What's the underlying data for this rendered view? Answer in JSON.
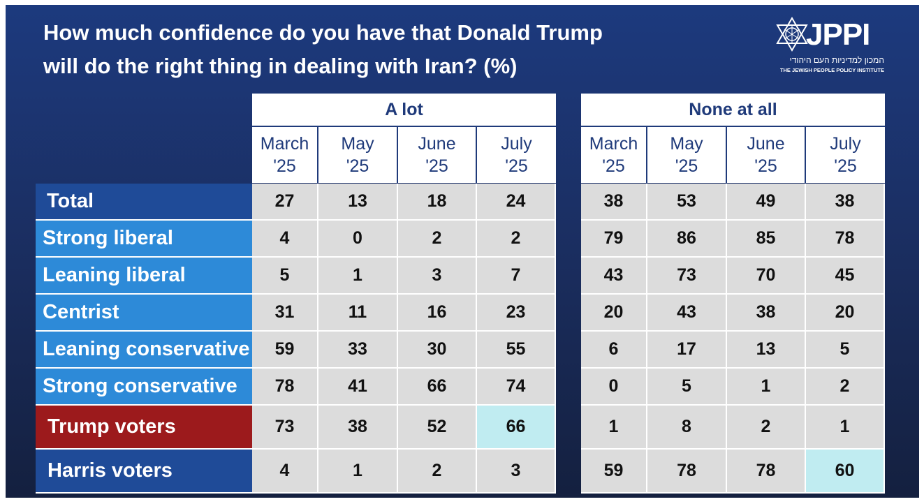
{
  "title_lines": [
    "How much confidence do you have that Donald Trump",
    "will do the right thing in dealing with Iran? (%)"
  ],
  "logo": {
    "name": "JPPI",
    "hebrew": "המכון למדיניות העם היהודי",
    "english": "THE JEWISH PEOPLE POLICY INSTITUTE"
  },
  "colors": {
    "background": "#1c3a7e",
    "header_text": "#1f3a7a",
    "total_row": "#1f4b98",
    "segment_rows": "#2d8ad8",
    "trump_row": "#9c1a1c",
    "harris_row": "#1f4b98",
    "cell": "#dcdcdc",
    "highlight": "#c0ecf1"
  },
  "chart_data": {
    "type": "table",
    "periods": [
      {
        "month": "March",
        "year": "'25"
      },
      {
        "month": "May",
        "year": "'25"
      },
      {
        "month": "June",
        "year": "'25"
      },
      {
        "month": "July",
        "year": "'25"
      }
    ],
    "rows": [
      "Total",
      "Strong liberal",
      "Leaning liberal",
      "Centrist",
      "Leaning conservative",
      "Strong conservative",
      "Trump voters",
      "Harris voters"
    ],
    "panels": [
      {
        "name": "A lot",
        "values": [
          [
            27,
            13,
            18,
            24
          ],
          [
            4,
            0,
            2,
            2
          ],
          [
            5,
            1,
            3,
            7
          ],
          [
            31,
            11,
            16,
            23
          ],
          [
            59,
            33,
            30,
            55
          ],
          [
            78,
            41,
            66,
            74
          ],
          [
            73,
            38,
            52,
            66
          ],
          [
            4,
            1,
            2,
            3
          ]
        ],
        "highlighted": [
          [
            6,
            3
          ]
        ]
      },
      {
        "name": "None at all",
        "values": [
          [
            38,
            53,
            49,
            38
          ],
          [
            79,
            86,
            85,
            78
          ],
          [
            43,
            73,
            70,
            45
          ],
          [
            20,
            43,
            38,
            20
          ],
          [
            6,
            17,
            13,
            5
          ],
          [
            0,
            5,
            1,
            2
          ],
          [
            1,
            8,
            2,
            1
          ],
          [
            59,
            78,
            78,
            60
          ]
        ],
        "highlighted": [
          [
            7,
            3
          ]
        ]
      }
    ]
  }
}
